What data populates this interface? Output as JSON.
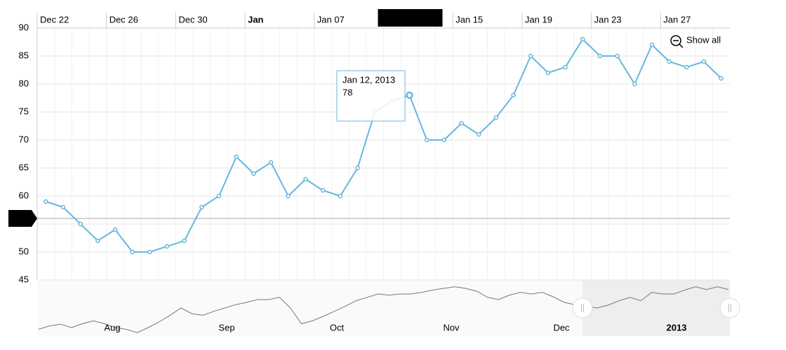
{
  "chart_data": {
    "type": "line",
    "categories": [
      "Dec 22",
      null,
      null,
      null,
      "Dec 26",
      null,
      null,
      null,
      "Dec 30",
      null,
      null,
      null,
      "Jan",
      null,
      null,
      null,
      "Jan 07",
      null,
      null,
      null,
      null,
      null,
      null,
      null,
      "Jan 15",
      null,
      null,
      null,
      "Jan 19",
      null,
      null,
      null,
      "Jan 23",
      null,
      null,
      null,
      "Jan 27",
      null,
      null,
      null
    ],
    "series": [
      {
        "color": "#67b7dc",
        "values": [
          59,
          58,
          55,
          52,
          54,
          50,
          50,
          51,
          52,
          58,
          60,
          67,
          64,
          66,
          60,
          63,
          61,
          60,
          65,
          75,
          77,
          78,
          70,
          70,
          73,
          71,
          74,
          78,
          85,
          82,
          83,
          88,
          85,
          85,
          80,
          87,
          84,
          83,
          84,
          81
        ]
      }
    ],
    "ylim": [
      45,
      90
    ],
    "yticks": [
      45,
      50,
      55,
      60,
      65,
      70,
      75,
      80,
      85,
      90
    ],
    "grid": true,
    "cursor": {
      "label": "Jan 12, 2013",
      "y_value": 56
    },
    "tooltip": {
      "title": "Jan 12, 2013",
      "value": 78
    },
    "zoom_button": "Show all",
    "scrollbar": {
      "labels": [
        "Aug",
        "Sep",
        "Oct",
        "Nov",
        "Dec",
        "2013"
      ],
      "ylim": [
        0,
        100
      ],
      "values": [
        12,
        18,
        21,
        15,
        22,
        27,
        22,
        15,
        12,
        6,
        15,
        25,
        37,
        50,
        40,
        37,
        44,
        50,
        56,
        60,
        65,
        65,
        69,
        50,
        22,
        27,
        35,
        44,
        53,
        63,
        69,
        75,
        73,
        75,
        75,
        78,
        82,
        85,
        88,
        85,
        80,
        69,
        65,
        73,
        78,
        75,
        78,
        70,
        60,
        56,
        53,
        50,
        55,
        63,
        69,
        63,
        78,
        75,
        75,
        82,
        88,
        83,
        88,
        83
      ]
    }
  }
}
